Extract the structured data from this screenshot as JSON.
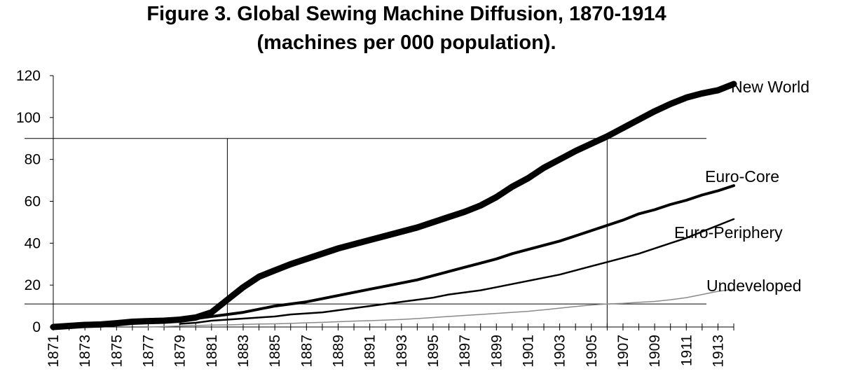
{
  "chart_data": {
    "type": "line",
    "title_line_1": "Figure 3. Global Sewing Machine Diffusion, 1870-1914",
    "title_line_2": "(machines per 000 population).",
    "xlabel": "",
    "ylabel": "",
    "xlim": [
      1871,
      1914
    ],
    "ylim": [
      0,
      120
    ],
    "y_ticks": [
      0,
      20,
      40,
      60,
      80,
      100,
      120
    ],
    "x_tick_labels": [
      "1871",
      "1873",
      "1875",
      "1877",
      "1879",
      "1881",
      "1883",
      "1885",
      "1887",
      "1889",
      "1891",
      "1893",
      "1895",
      "1897",
      "1899",
      "1901",
      "1903",
      "1905",
      "1907",
      "1909",
      "1911",
      "1913"
    ],
    "grid": false,
    "reference_lines": {
      "horizontal": [
        11,
        90
      ],
      "vertical": [
        1882,
        1906
      ]
    },
    "series": [
      {
        "name": "New World",
        "stroke": "#000000",
        "x": [
          1871,
          1872,
          1873,
          1874,
          1875,
          1876,
          1877,
          1878,
          1879,
          1880,
          1881,
          1882,
          1883,
          1884,
          1885,
          1886,
          1887,
          1888,
          1889,
          1890,
          1891,
          1892,
          1893,
          1894,
          1895,
          1896,
          1897,
          1898,
          1899,
          1900,
          1901,
          1902,
          1903,
          1904,
          1905,
          1906,
          1907,
          1908,
          1909,
          1910,
          1911,
          1912,
          1913,
          1914
        ],
        "values": [
          0,
          0.5,
          1,
          1.2,
          1.8,
          2.5,
          2.8,
          3,
          3.5,
          4.5,
          7,
          13,
          19,
          24,
          27,
          30,
          32.5,
          35,
          37.5,
          39.5,
          41.5,
          43.5,
          45.5,
          47.5,
          50,
          52.5,
          55,
          58,
          62,
          67,
          71,
          76,
          80,
          84,
          87.5,
          91,
          95,
          99,
          103,
          106.5,
          109.5,
          111.5,
          113,
          116
        ]
      },
      {
        "name": "Euro-Core",
        "stroke": "#000000",
        "x": [
          1879,
          1880,
          1881,
          1882,
          1883,
          1884,
          1885,
          1886,
          1887,
          1888,
          1889,
          1890,
          1891,
          1892,
          1893,
          1894,
          1895,
          1896,
          1897,
          1898,
          1899,
          1900,
          1901,
          1902,
          1903,
          1904,
          1905,
          1906,
          1907,
          1908,
          1909,
          1910,
          1911,
          1912,
          1913,
          1914
        ],
        "values": [
          3,
          4,
          5,
          6,
          7,
          8.5,
          10,
          11,
          12,
          13.5,
          15,
          16.5,
          18,
          19.5,
          21,
          22.5,
          24.5,
          26.5,
          28.5,
          30.5,
          32.5,
          35,
          37,
          39,
          41,
          43.5,
          46,
          48.5,
          51,
          54,
          56,
          58.5,
          60.5,
          63,
          65,
          67.5
        ]
      },
      {
        "name": "Euro-Periphery",
        "stroke": "#000000",
        "x": [
          1879,
          1880,
          1881,
          1882,
          1883,
          1884,
          1885,
          1886,
          1887,
          1888,
          1889,
          1890,
          1891,
          1892,
          1893,
          1894,
          1895,
          1896,
          1897,
          1898,
          1899,
          1900,
          1901,
          1902,
          1903,
          1904,
          1905,
          1906,
          1907,
          1908,
          1909,
          1910,
          1911,
          1912,
          1913,
          1914
        ],
        "values": [
          1.5,
          2,
          3,
          3.5,
          4,
          4.5,
          5,
          6,
          6.5,
          7,
          8,
          9,
          10,
          11,
          12,
          13,
          14,
          15.5,
          16.5,
          17.5,
          19,
          20.5,
          22,
          23.5,
          25,
          27,
          29,
          31,
          33,
          35,
          37.5,
          40,
          42.5,
          45.5,
          48.5,
          51.5
        ]
      },
      {
        "name": "Undeveloped",
        "stroke": "#8a8a8a",
        "x": [
          1877,
          1878,
          1879,
          1880,
          1881,
          1882,
          1883,
          1884,
          1885,
          1886,
          1887,
          1888,
          1889,
          1890,
          1891,
          1892,
          1893,
          1894,
          1895,
          1896,
          1897,
          1898,
          1899,
          1900,
          1901,
          1902,
          1903,
          1904,
          1905,
          1906,
          1907,
          1908,
          1909,
          1910,
          1911,
          1912,
          1913,
          1914
        ],
        "values": [
          0,
          0.2,
          0.5,
          0.7,
          0.9,
          1,
          1.2,
          1.4,
          1.5,
          1.7,
          2,
          2.2,
          2.5,
          2.8,
          3,
          3.3,
          3.6,
          4,
          4.5,
          5,
          5.5,
          6,
          6.5,
          7,
          7.5,
          8.2,
          9,
          9.8,
          10.5,
          11,
          11.3,
          11.8,
          12.2,
          13,
          14,
          15.5,
          17,
          18
        ]
      }
    ],
    "series_labels": [
      "New World",
      "Euro-Core",
      "Euro-Periphery",
      "Undeveloped"
    ]
  }
}
